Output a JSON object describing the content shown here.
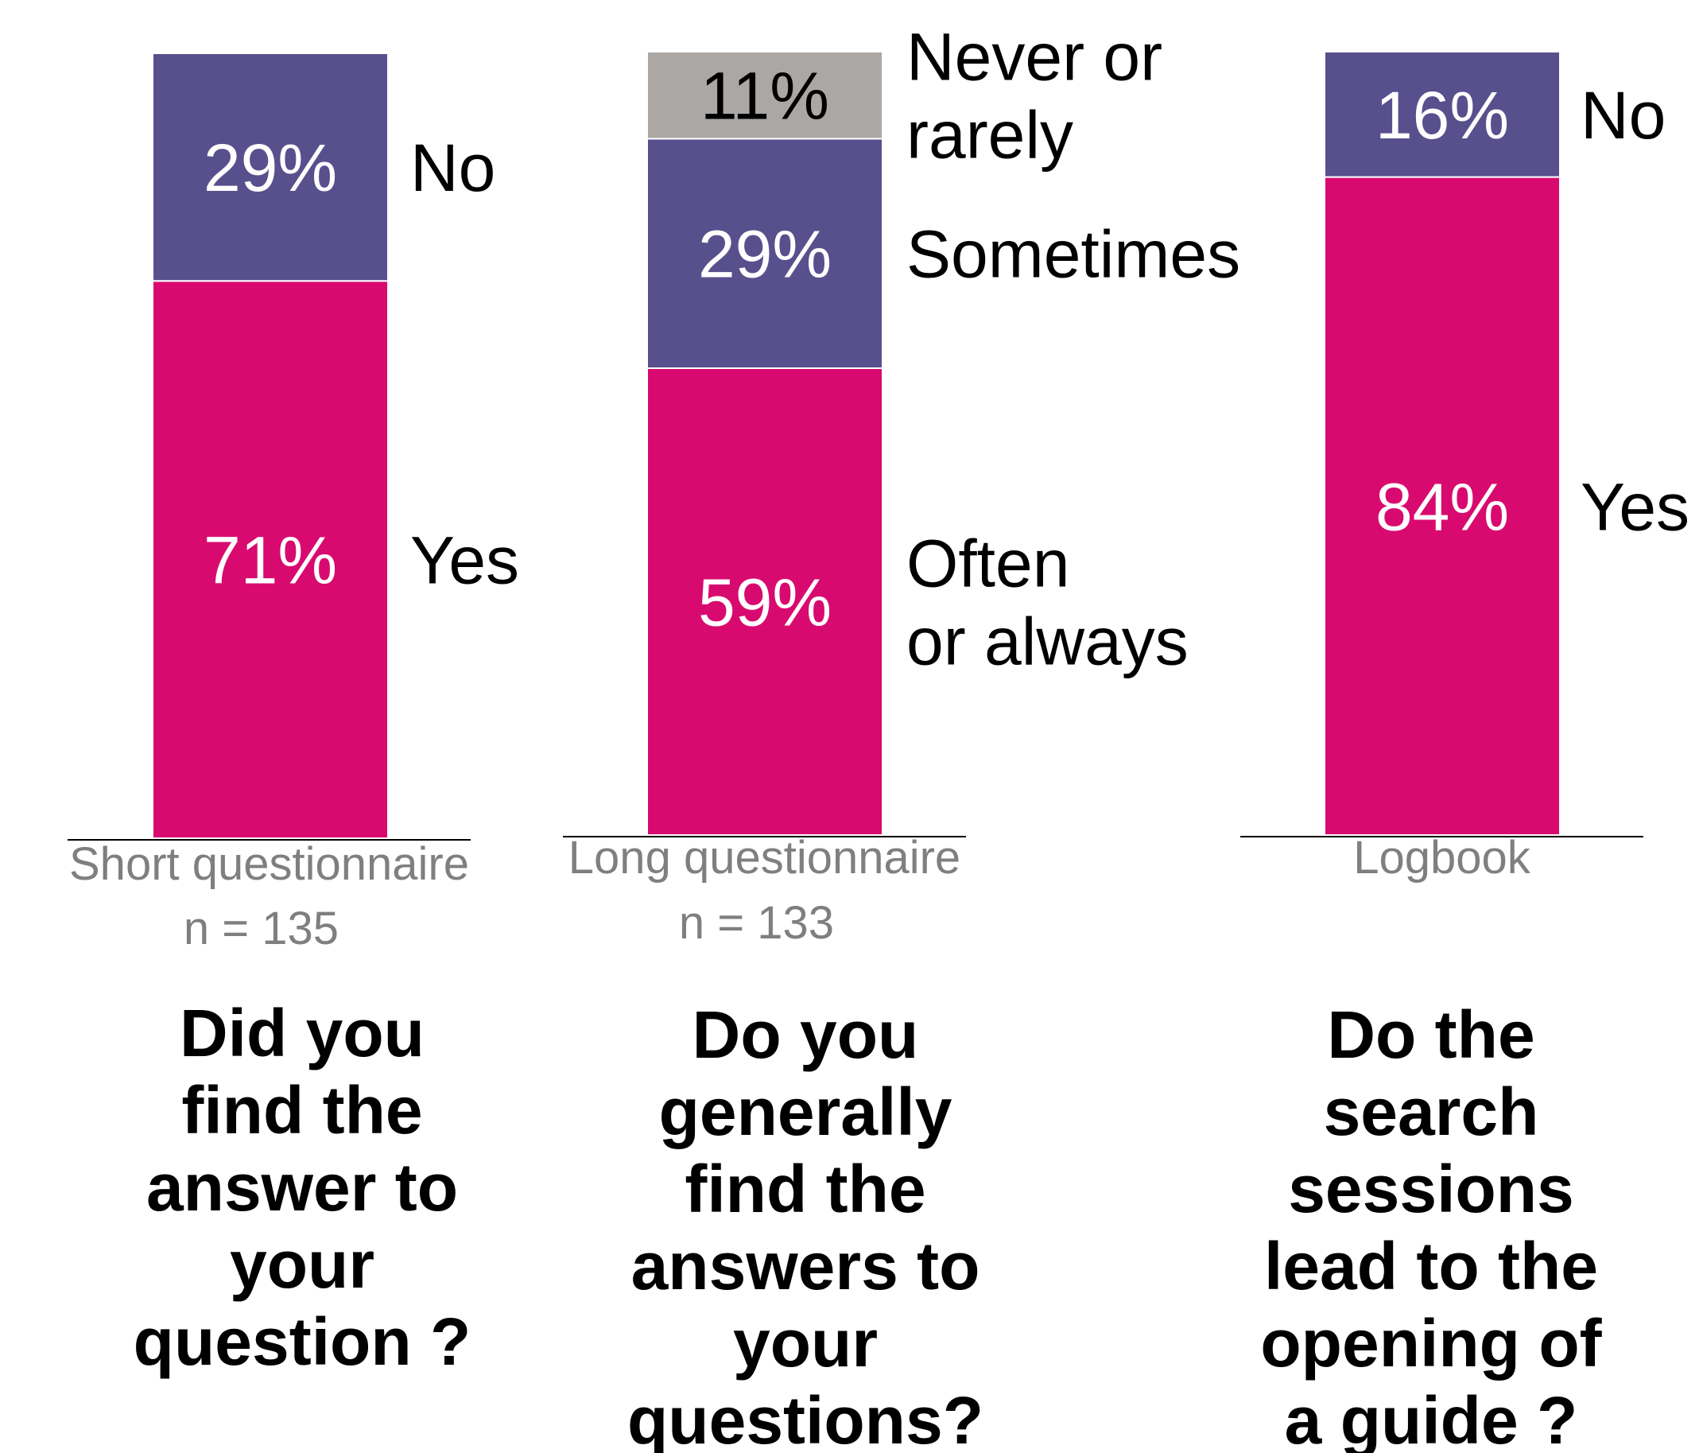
{
  "chart_data": [
    {
      "type": "bar",
      "stacked": true,
      "unit": "%",
      "category": "Short questionnaire",
      "sample": "n = 135",
      "question": [
        "Did you",
        "find the",
        "answer to",
        "your",
        "question ?"
      ],
      "series": [
        {
          "name": "Yes",
          "value": 71,
          "label": "71%",
          "color": "#d80a70",
          "text_color": "#ffffff",
          "side_label": [
            "Yes"
          ]
        },
        {
          "name": "No",
          "value": 29,
          "label": "29%",
          "color": "#58508d",
          "text_color": "#ffffff",
          "side_label": [
            "No"
          ]
        }
      ]
    },
    {
      "type": "bar",
      "stacked": true,
      "unit": "%",
      "category": "Long questionnaire",
      "sample": "n = 133",
      "question": [
        "Do you",
        "generally",
        "find the",
        "answers to",
        "your",
        "questions?"
      ],
      "series": [
        {
          "name": "Often or always",
          "value": 59,
          "label": "59%",
          "color": "#d80a70",
          "text_color": "#ffffff",
          "side_label": [
            "Often",
            "or always"
          ]
        },
        {
          "name": "Sometimes",
          "value": 29,
          "label": "29%",
          "color": "#58508d",
          "text_color": "#ffffff",
          "side_label": [
            "Sometimes"
          ]
        },
        {
          "name": "Never or rarely",
          "value": 11,
          "label": "11%",
          "color": "#aaa7a5",
          "text_color": "#000000",
          "side_label": [
            "Never or",
            "rarely"
          ]
        }
      ]
    },
    {
      "type": "bar",
      "stacked": true,
      "unit": "%",
      "category": "Logbook",
      "sample": "",
      "question": [
        "Do the",
        "search",
        "sessions",
        "lead to the",
        "opening of",
        "a guide ?"
      ],
      "series": [
        {
          "name": "Yes",
          "value": 84,
          "label": "84%",
          "color": "#d80a70",
          "text_color": "#ffffff",
          "side_label": [
            "Yes"
          ]
        },
        {
          "name": "No",
          "value": 16,
          "label": "16%",
          "color": "#58508d",
          "text_color": "#ffffff",
          "side_label": [
            "No"
          ]
        }
      ]
    }
  ]
}
